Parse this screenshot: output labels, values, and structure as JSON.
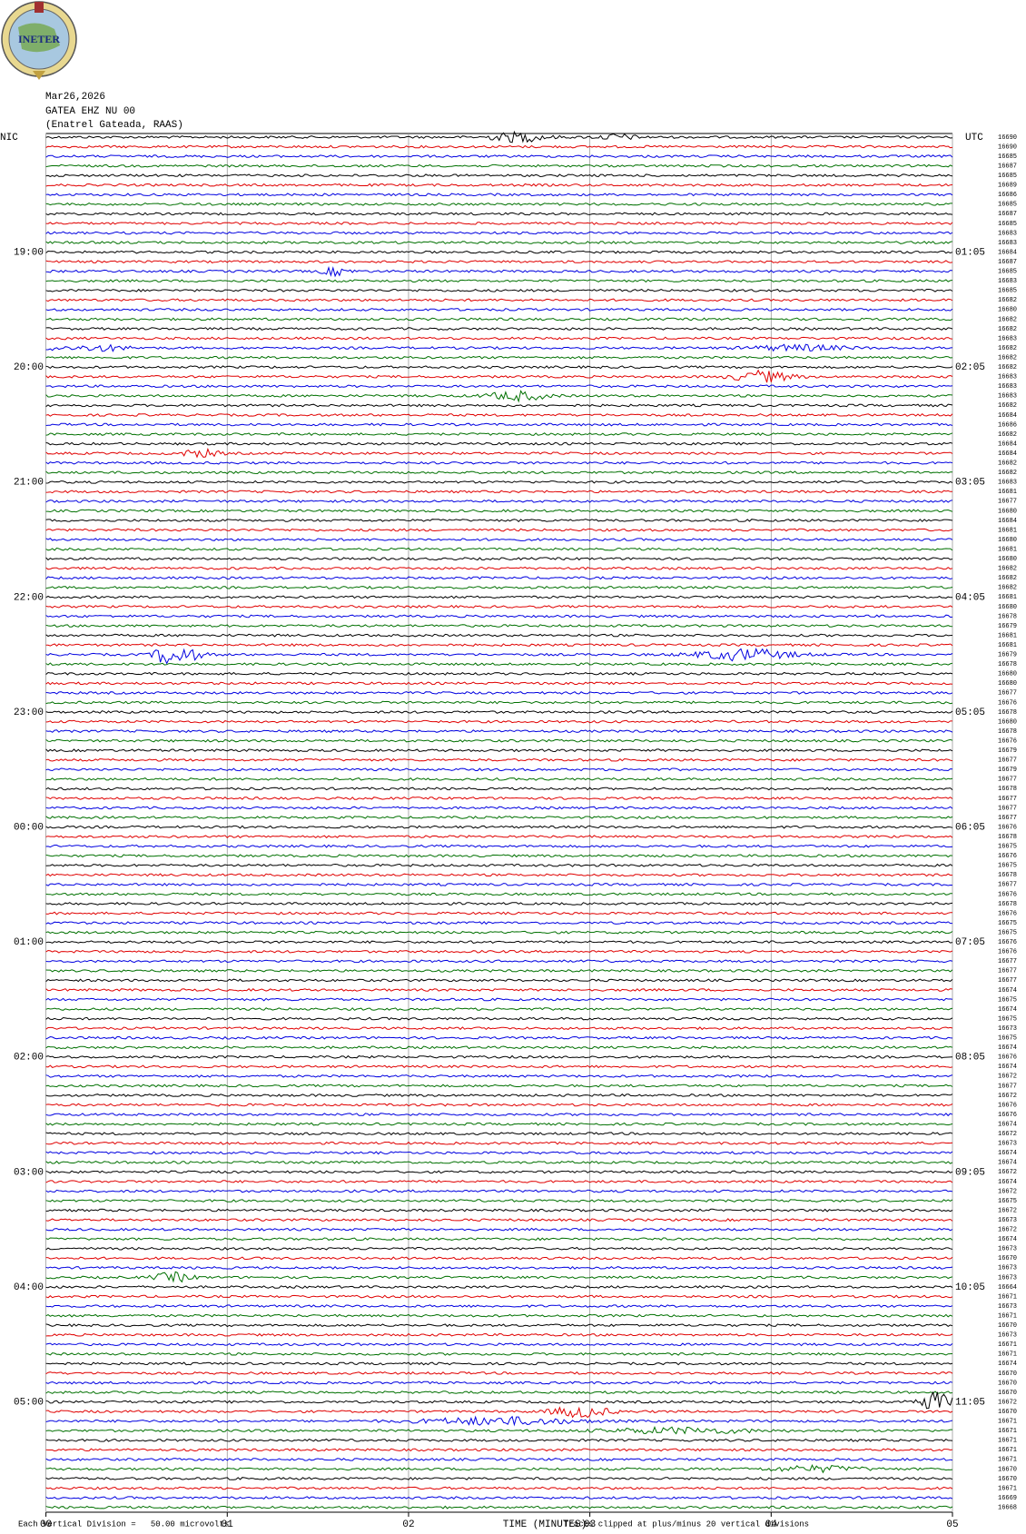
{
  "header": {
    "date": "Mar26,2026",
    "station": "GATEA EHZ NU 00",
    "location": "(Enatrel Gateada, RAAS)",
    "logo_text": "INETER"
  },
  "chart_data": {
    "type": "helicorder",
    "left_zone": "NIC",
    "right_zone": "UTC",
    "nic_hours": [
      "19:00",
      "20:00",
      "21:00",
      "22:00",
      "23:00",
      "00:00",
      "01:00",
      "02:00",
      "03:00",
      "04:00",
      "05:00"
    ],
    "utc_hours": [
      "01:05",
      "02:05",
      "03:05",
      "04:05",
      "05:05",
      "06:05",
      "07:05",
      "08:05",
      "09:05",
      "10:05",
      "11:05"
    ],
    "trace_labels": [
      16690,
      16690,
      16685,
      16687,
      16685,
      16689,
      16686,
      16685,
      16687,
      16685,
      16683,
      16683,
      16684,
      16687,
      16685,
      16683,
      16685,
      16682,
      16680,
      16682,
      16682,
      16683,
      16682,
      16682,
      16682,
      16683,
      16683,
      16683,
      16682,
      16684,
      16686,
      16682,
      16684,
      16684,
      16682,
      16682,
      16683,
      16681,
      16677,
      16680,
      16684,
      16681,
      16680,
      16681,
      16680,
      16682,
      16682,
      16682,
      16681,
      16680,
      16678,
      16679,
      16681,
      16681,
      16679,
      16678,
      16680,
      16680,
      16677,
      16676,
      16678,
      16680,
      16678,
      16676,
      16679,
      16677,
      16679,
      16677,
      16678,
      16677,
      16677,
      16677,
      16676,
      16678,
      16675,
      16676,
      16675,
      16678,
      16677,
      16676,
      16678,
      16676,
      16675,
      16675,
      16676,
      16676,
      16677,
      16677,
      16677,
      16674,
      16675,
      16674,
      16675,
      16673,
      16675,
      16674,
      16676,
      16674,
      16672,
      16677,
      16672,
      16676,
      16676,
      16674,
      16672,
      16673,
      16674,
      16674,
      16672,
      16674,
      16672,
      16675,
      16672,
      16673,
      16672,
      16674,
      16673,
      16670,
      16673,
      16673,
      16664,
      16671,
      16673,
      16671,
      16670,
      16673,
      16671,
      16671,
      16674,
      16670,
      16670,
      16670,
      16672,
      16670,
      16671,
      16671,
      16671,
      16671,
      16671,
      16670,
      16670,
      16671,
      16669,
      16668
    ],
    "trace_colors": [
      "#000000",
      "#e00000",
      "#0000e0",
      "#007000"
    ],
    "xlabel": "TIME (MINUTES)",
    "xlim": [
      0,
      5
    ],
    "xticks": [
      {
        "value": 0,
        "label": "00"
      },
      {
        "value": 1,
        "label": "01"
      },
      {
        "value": 2,
        "label": "02"
      },
      {
        "value": 3,
        "label": "03"
      },
      {
        "value": 4,
        "label": "04"
      },
      {
        "value": 5,
        "label": "05"
      }
    ],
    "scale_note": "Each Vertical Division =   50.00 microvolts",
    "clip_note": "Traces clipped at plus/minus 20 vertical divisions"
  }
}
